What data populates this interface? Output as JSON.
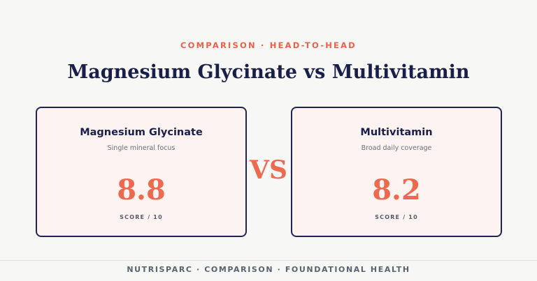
{
  "header": {
    "eyebrow": "COMPARISON · HEAD-TO-HEAD",
    "title": "Magnesium Glycinate vs Multivitamin"
  },
  "cards": [
    {
      "name": "Magnesium Glycinate",
      "subtitle": "Single mineral focus",
      "score": "8.8",
      "score_label": "SCORE / 10"
    },
    {
      "name": "Multivitamin",
      "subtitle": "Broad daily coverage",
      "score": "8.2",
      "score_label": "SCORE / 10"
    }
  ],
  "versus": "VS",
  "footer": "NUTRISPARC · COMPARISON · FOUNDATIONAL HEALTH"
}
